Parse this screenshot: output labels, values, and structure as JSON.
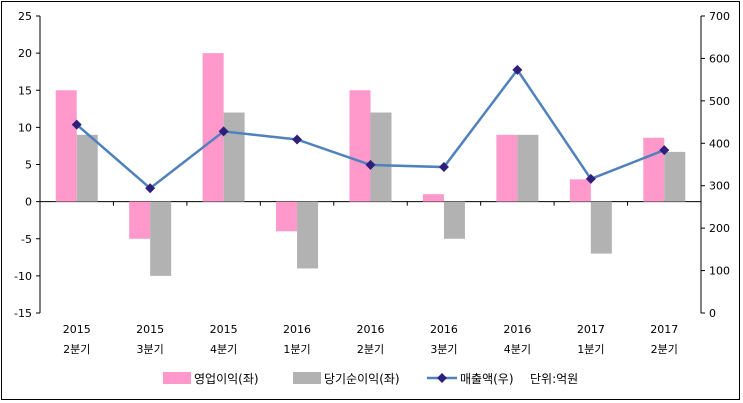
{
  "chart_data": {
    "type": "bar",
    "categories": [
      {
        "year": "2015",
        "quarter": "2분기"
      },
      {
        "year": "2015",
        "quarter": "3분기"
      },
      {
        "year": "2015",
        "quarter": "4분기"
      },
      {
        "year": "2016",
        "quarter": "1분기"
      },
      {
        "year": "2016",
        "quarter": "2분기"
      },
      {
        "year": "2016",
        "quarter": "3분기"
      },
      {
        "year": "2016",
        "quarter": "4분기"
      },
      {
        "year": "2017",
        "quarter": "1분기"
      },
      {
        "year": "2017",
        "quarter": "2분기"
      }
    ],
    "series": [
      {
        "name": "영업이익(좌)",
        "type": "bar",
        "axis": "left",
        "color": "#ff99cc",
        "values": [
          15,
          -5,
          20,
          -4,
          15,
          1,
          9,
          3,
          8.6
        ]
      },
      {
        "name": "당기순이익(좌)",
        "type": "bar",
        "axis": "left",
        "color": "#b2b2b2",
        "values": [
          9,
          -10,
          12,
          -9,
          12,
          -5,
          9,
          -7,
          6.7
        ]
      },
      {
        "name": "매출액(우)",
        "type": "line",
        "axis": "right",
        "color": "#4f81bd",
        "marker_color": "#2e1f7a",
        "values": [
          444,
          294,
          428,
          409,
          349,
          344,
          573,
          316,
          384
        ]
      }
    ],
    "y_left": {
      "min": -15,
      "max": 25,
      "step": 5,
      "ticks": [
        "-15",
        "-10",
        "-5",
        "0",
        "5",
        "10",
        "15",
        "20",
        "25"
      ]
    },
    "y_right": {
      "min": 0,
      "max": 700,
      "step": 100,
      "ticks": [
        "0",
        "100",
        "200",
        "300",
        "400",
        "500",
        "600",
        "700"
      ]
    },
    "unit_note": "단위:억원",
    "legend_position": "bottom",
    "grid": false
  }
}
